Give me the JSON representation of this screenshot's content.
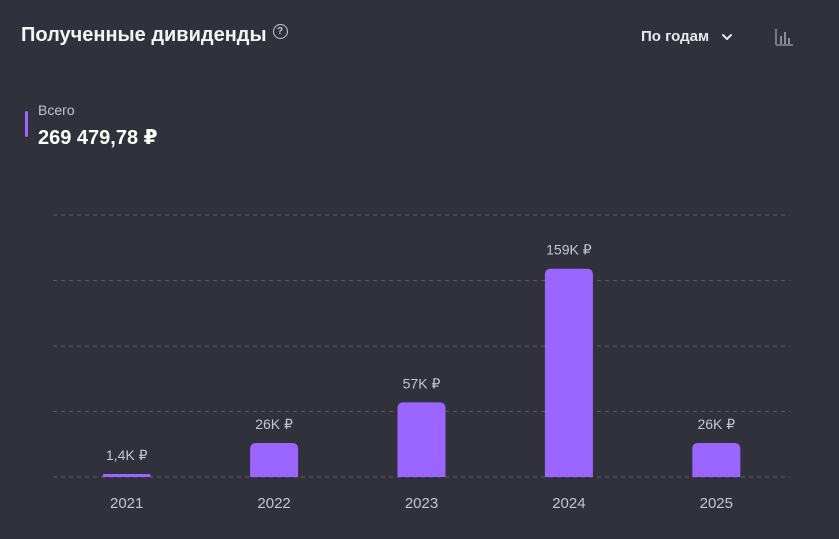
{
  "header": {
    "title": "Полученные дивиденды",
    "help_icon": "question-circle-icon",
    "period_label": "По годам",
    "period_icon": "chevron-down-icon",
    "chart_toggle_icon": "bar-chart-icon"
  },
  "summary": {
    "label": "Всего",
    "value": "269 479,78 ₽",
    "marker_color": "#9a66ff"
  },
  "colors": {
    "background": "#31313c",
    "bar": "#9a66ff",
    "gridline": "#5a5a68",
    "text_muted": "#c6c6ce"
  },
  "chart_data": {
    "type": "bar",
    "categories": [
      "2021",
      "2022",
      "2023",
      "2024",
      "2025"
    ],
    "values": [
      1400,
      26000,
      57000,
      159000,
      26000
    ],
    "data_labels": [
      "1,4K ₽",
      "26K ₽",
      "57K ₽",
      "159K ₽",
      "26K ₽"
    ],
    "ylim": [
      0,
      200000
    ],
    "grid": true,
    "title": "",
    "xlabel": "",
    "ylabel": ""
  }
}
